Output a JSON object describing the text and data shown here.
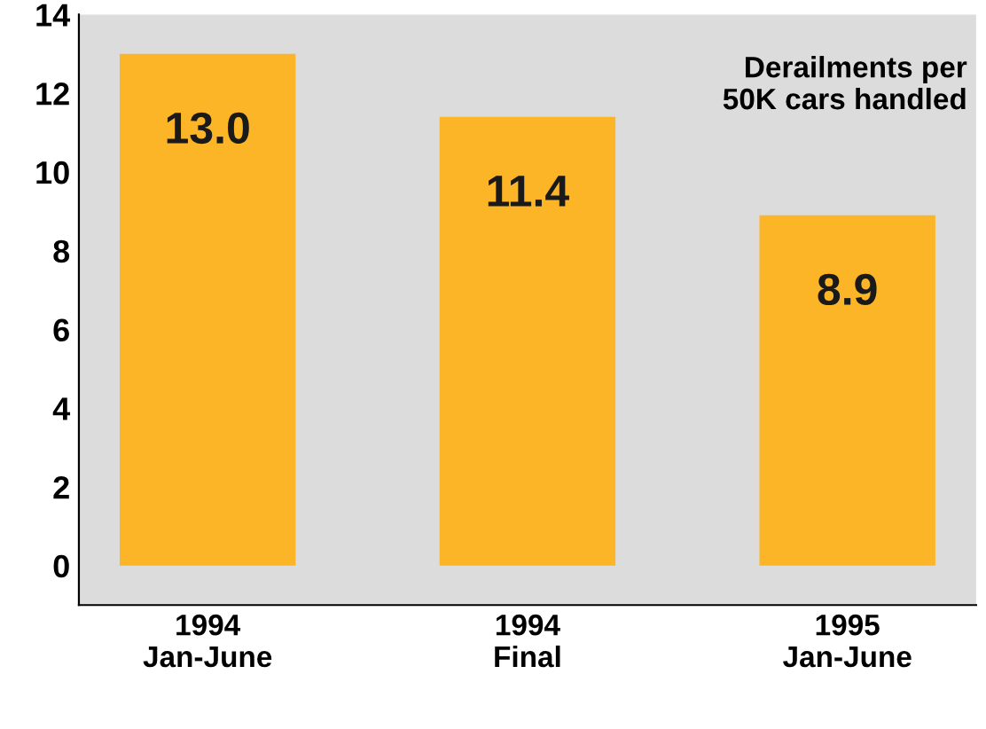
{
  "chart_data": {
    "type": "bar",
    "categories": [
      "1994\nJan-June",
      "1994\nFinal",
      "1995\nJan-June"
    ],
    "values": [
      13.0,
      11.4,
      8.9
    ],
    "value_labels": [
      "13.0",
      "11.4",
      "8.9"
    ],
    "color": "#fbb526",
    "ylim": [
      -1,
      14
    ],
    "yticks": [
      0,
      2,
      4,
      6,
      8,
      10,
      12,
      14
    ],
    "annotations": [
      "Derailments per\n50K cars handled"
    ],
    "grid": false,
    "legend": false
  }
}
